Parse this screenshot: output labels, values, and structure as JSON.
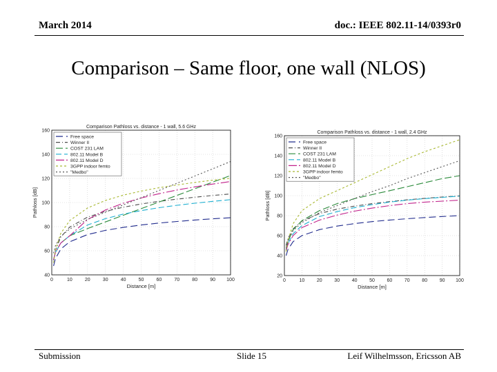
{
  "header": {
    "date": "March 2014",
    "doc_id": "doc.: IEEE 802.11-14/0393r0"
  },
  "title": "Comparison – Same floor, one wall (NLOS)",
  "footer": {
    "left": "Submission",
    "center": "Slide 15",
    "right": "Leif Wilhelmsson, Ericsson AB"
  },
  "chart_data": [
    {
      "type": "line",
      "title": "Comparison Pathloss vs. distance - 1 wall, 5.6 GHz",
      "xlabel": "Distance [m]",
      "ylabel": "Pathloss [dB]",
      "xlim": [
        0,
        100
      ],
      "ylim": [
        40,
        160
      ],
      "xticks": [
        0,
        10,
        20,
        30,
        40,
        50,
        60,
        70,
        80,
        90,
        100
      ],
      "yticks": [
        40,
        60,
        80,
        100,
        120,
        140,
        160
      ],
      "grid": true,
      "legend": "top-left",
      "x": [
        1,
        2,
        5,
        10,
        20,
        30,
        40,
        50,
        60,
        70,
        80,
        90,
        100
      ],
      "series": [
        {
          "name": "Free space",
          "color": "#1f2a8c",
          "dash": "10,5",
          "values": [
            47.4,
            53.4,
            61.4,
            67.4,
            73.4,
            76.9,
            79.4,
            81.4,
            83.0,
            84.3,
            85.5,
            86.5,
            87.4
          ]
        },
        {
          "name": "Winner II",
          "color": "#4a4a4a",
          "dash": "6,3,1,3",
          "values": [
            52.0,
            60.4,
            71.3,
            79.6,
            87.9,
            92.7,
            96.1,
            98.8,
            101.0,
            102.8,
            104.4,
            105.9,
            107.1
          ]
        },
        {
          "name": "COST 231 LAM",
          "color": "#2a8a3a",
          "dash": "10,4",
          "values": [
            52.4,
            58.4,
            66.4,
            72.4,
            78.4,
            83.9,
            89.4,
            94.9,
            100.4,
            105.9,
            111.4,
            116.9,
            122.4
          ]
        },
        {
          "name": "802.11 Model B",
          "color": "#1aaed0",
          "dash": "8,4",
          "values": [
            52.4,
            58.4,
            66.4,
            72.4,
            81.4,
            86.6,
            90.4,
            93.3,
            95.7,
            97.7,
            99.4,
            101.0,
            102.4
          ]
        },
        {
          "name": "802.11 Model D",
          "color": "#c0208a",
          "dash": "12,3,2,3",
          "values": [
            52.4,
            58.4,
            66.4,
            72.4,
            85.9,
            93.8,
            99.4,
            103.8,
            107.3,
            110.4,
            113.0,
            115.3,
            117.4
          ]
        },
        {
          "name": "3GPP indoor femto",
          "color": "#a8b830",
          "dash": "3,3",
          "values": [
            50.0,
            60.5,
            74.4,
            85.0,
            95.5,
            101.7,
            106.1,
            109.5,
            112.3,
            114.6,
            116.7,
            118.5,
            120.1
          ]
        },
        {
          "name": "\"Medbo\"",
          "color": "#555555",
          "dash": "2,3",
          "values": [
            58.0,
            64.0,
            72.0,
            78.0,
            86.0,
            92.0,
            98.0,
            104.0,
            110.0,
            116.0,
            122.0,
            128.0,
            134.0
          ]
        }
      ]
    },
    {
      "type": "line",
      "title": "Comparison Pathloss vs. distance - 1 wall, 2.4 GHz",
      "xlabel": "Distance [m]",
      "ylabel": "Pathloss [dB]",
      "xlim": [
        0,
        100
      ],
      "ylim": [
        20,
        160
      ],
      "xticks": [
        0,
        10,
        20,
        30,
        40,
        50,
        60,
        70,
        80,
        90,
        100
      ],
      "yticks": [
        20,
        40,
        60,
        80,
        100,
        120,
        140,
        160
      ],
      "grid": true,
      "legend": "top-left",
      "x": [
        1,
        2,
        5,
        10,
        20,
        30,
        40,
        50,
        60,
        70,
        80,
        90,
        100
      ],
      "series": [
        {
          "name": "Free space",
          "color": "#1f2a8c",
          "dash": "10,5",
          "values": [
            40.0,
            46.0,
            54.0,
            60.0,
            66.0,
            69.5,
            72.0,
            74.0,
            75.6,
            76.9,
            78.1,
            79.1,
            80.0
          ]
        },
        {
          "name": "Winner II",
          "color": "#4a4a4a",
          "dash": "6,3,1,3",
          "values": [
            50.0,
            57.0,
            66.8,
            74.5,
            82.0,
            86.5,
            89.5,
            92.0,
            94.0,
            95.8,
            97.3,
            98.6,
            99.8
          ]
        },
        {
          "name": "COST 231 LAM",
          "color": "#2a8a3a",
          "dash": "10,4",
          "values": [
            46.0,
            54.0,
            66.0,
            75.0,
            85.0,
            92.0,
            97.0,
            101.0,
            105.0,
            109.0,
            113.0,
            117.0,
            120.0
          ]
        },
        {
          "name": "802.11 Model B",
          "color": "#1aaed0",
          "dash": "8,4",
          "values": [
            45.0,
            52.0,
            62.0,
            70.0,
            79.0,
            84.0,
            88.0,
            91.0,
            93.5,
            95.5,
            97.0,
            98.3,
            99.5
          ]
        },
        {
          "name": "802.11 Model D",
          "color": "#c0208a",
          "dash": "12,3,2,3",
          "values": [
            45.0,
            51.0,
            60.0,
            68.0,
            75.5,
            80.5,
            84.5,
            87.5,
            90.0,
            92.0,
            93.5,
            94.5,
            95.5
          ]
        },
        {
          "name": "3GPP indoor femto",
          "color": "#a8b830",
          "dash": "3,3",
          "values": [
            44.0,
            55.0,
            72.0,
            85.0,
            97.0,
            105.0,
            113.0,
            121.0,
            129.0,
            137.0,
            144.0,
            150.0,
            156.0
          ]
        },
        {
          "name": "\"Medbo\"",
          "color": "#555555",
          "dash": "2,3",
          "values": [
            48.0,
            55.0,
            65.0,
            73.0,
            83.0,
            90.0,
            97.0,
            104.0,
            110.0,
            117.0,
            123.0,
            129.0,
            135.0
          ]
        }
      ]
    }
  ]
}
